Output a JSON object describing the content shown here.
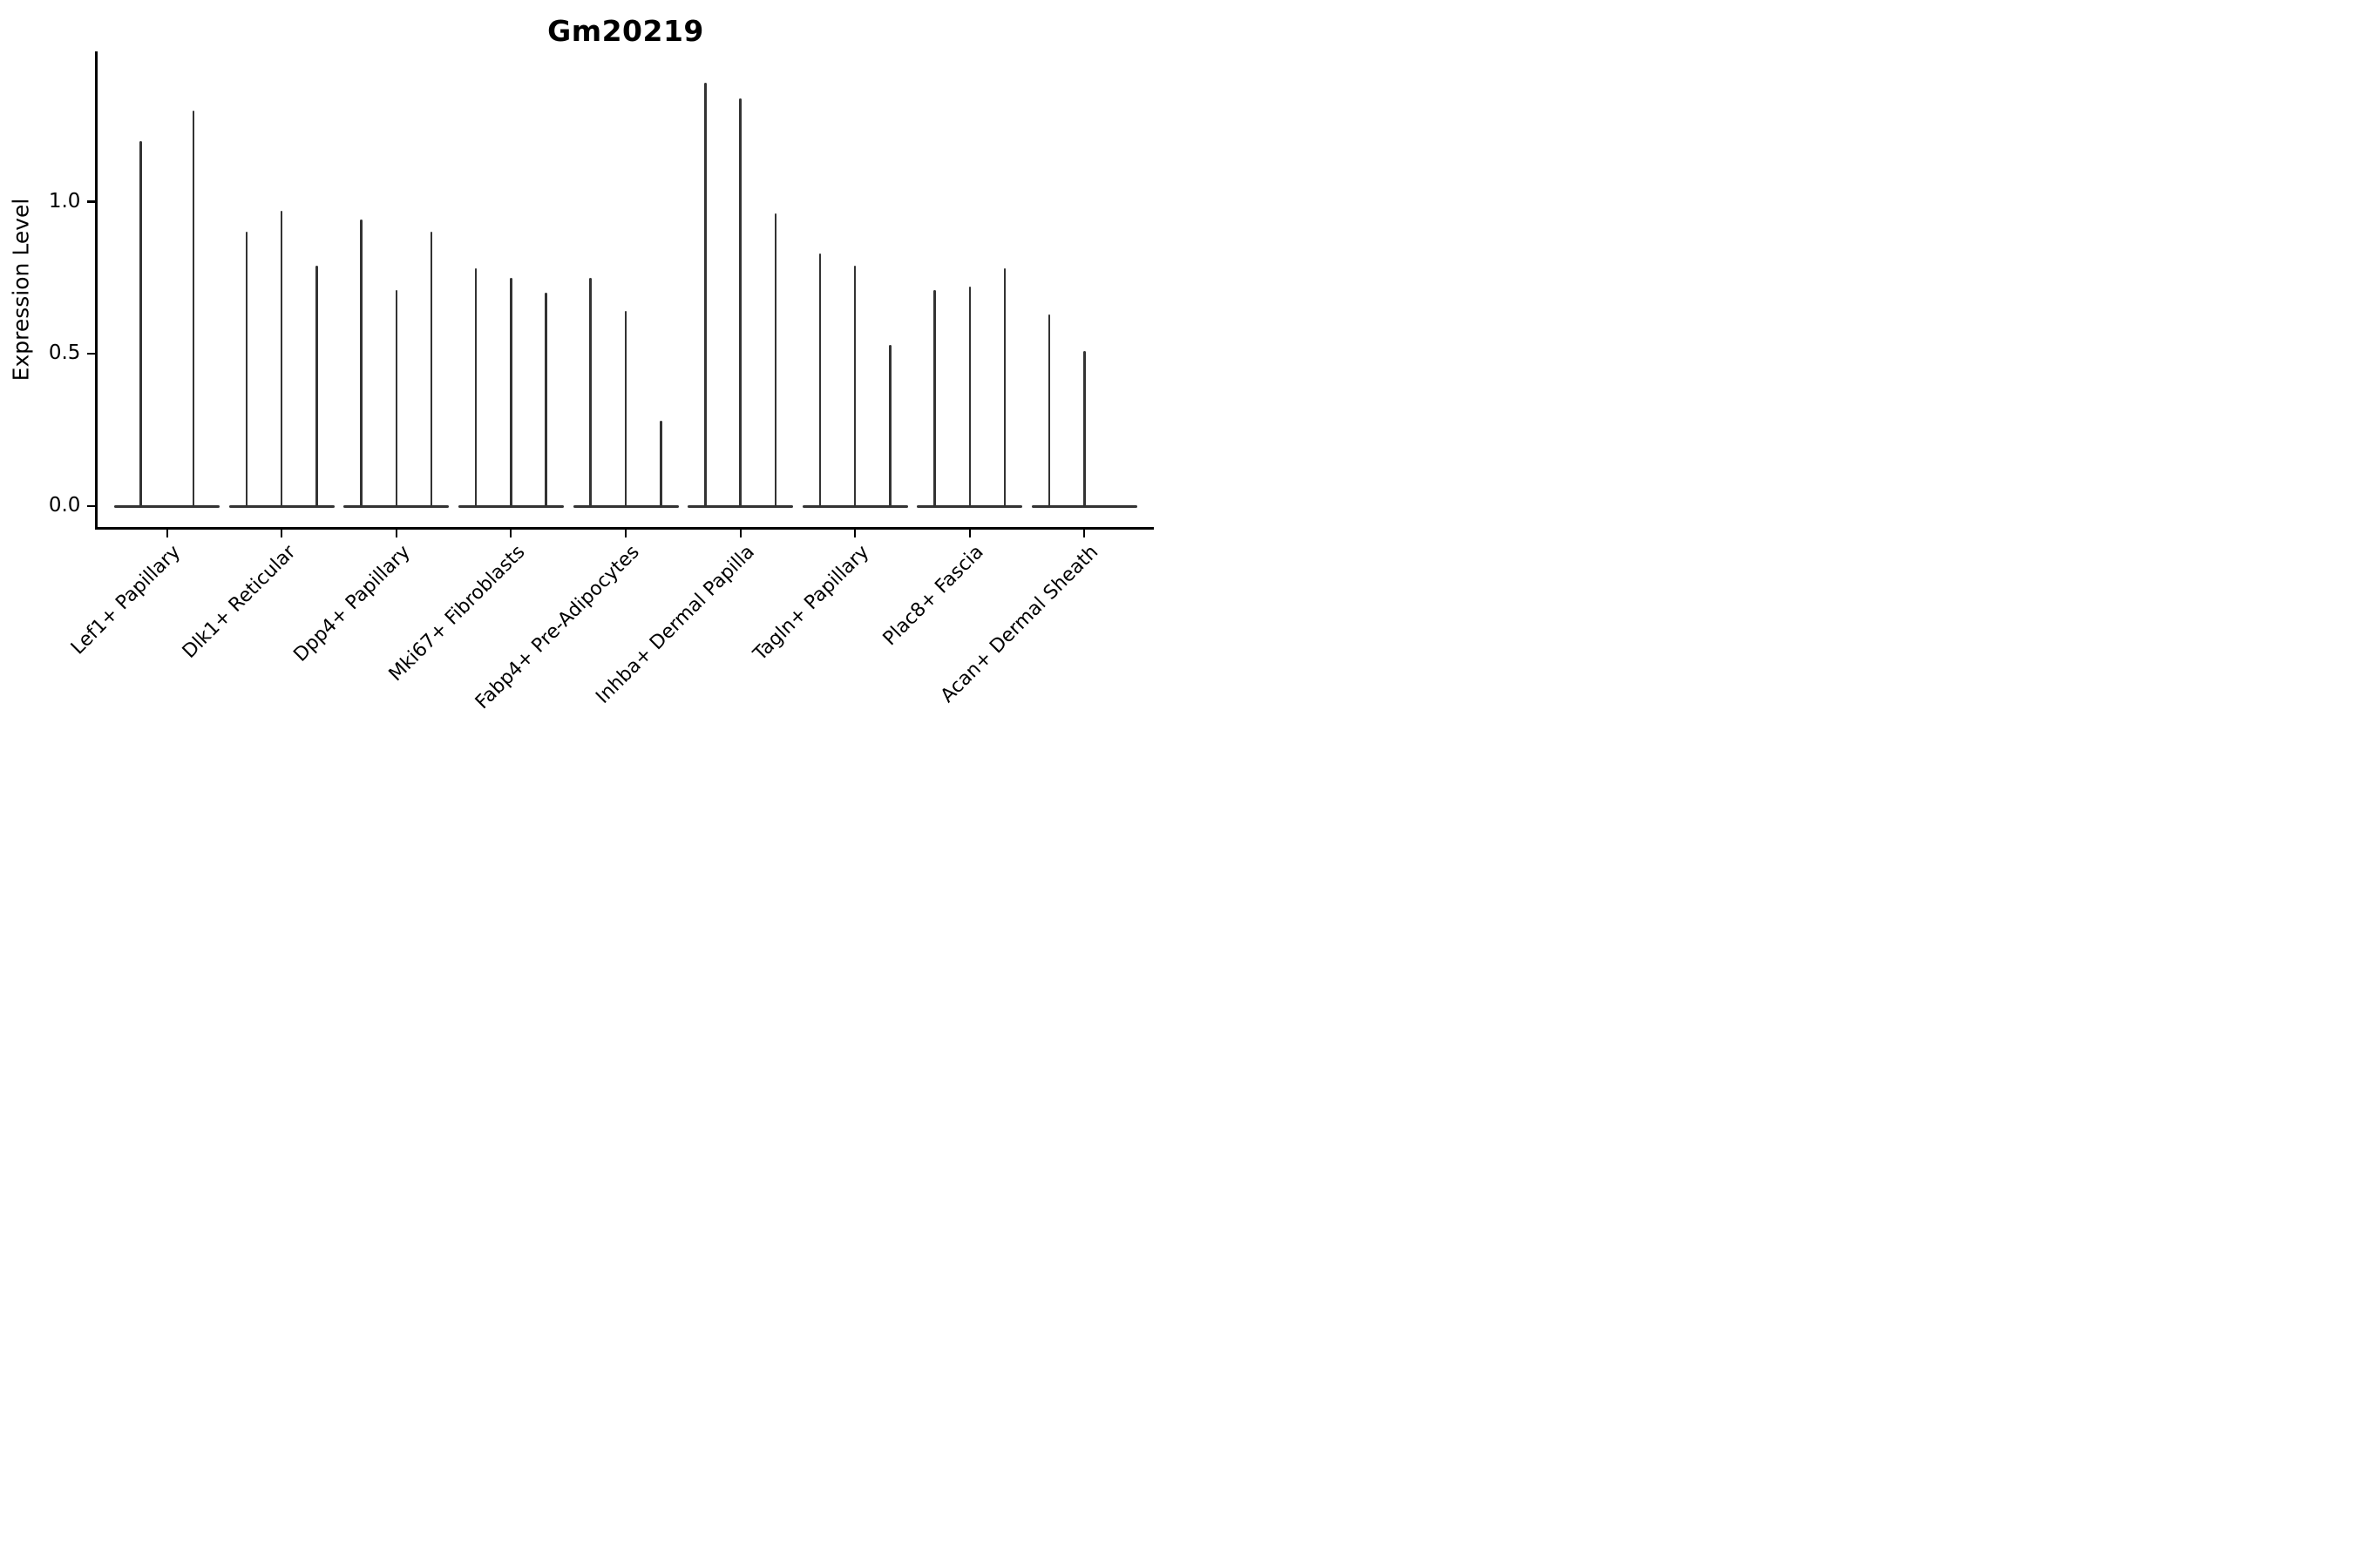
{
  "chart_data": {
    "type": "violin",
    "title": "Gm20219",
    "ylabel": "Expression Level",
    "xlabel": "",
    "ytick_labels": [
      "0.0",
      "0.5",
      "1.0"
    ],
    "ytick_values": [
      0.0,
      0.5,
      1.0
    ],
    "ylim": [
      -0.07,
      1.49
    ],
    "grid": false,
    "legend": "none",
    "style_note": "thin dark-gray violin spikes with flat bases at zero, black left/bottom spines only",
    "colors": {
      "violin": "#333333",
      "axis": "#000000",
      "text": "#000000",
      "background": "#ffffff"
    },
    "categories": [
      {
        "label": "Lef1+ Papillary",
        "slots": 2,
        "spike_maxima": [
          1.2,
          1.3
        ]
      },
      {
        "label": "Dlk1+ Reticular",
        "slots": 3,
        "spike_maxima": [
          0.9,
          0.97,
          0.79
        ]
      },
      {
        "label": "Dpp4+ Papillary",
        "slots": 3,
        "spike_maxima": [
          0.94,
          0.71,
          0.9
        ]
      },
      {
        "label": "Mki67+ Fibroblasts",
        "slots": 3,
        "spike_maxima": [
          0.78,
          0.75,
          0.7
        ]
      },
      {
        "label": "Fabp4+ Pre-Adipocytes",
        "slots": 3,
        "spike_maxima": [
          0.75,
          0.64,
          0.28
        ]
      },
      {
        "label": "Inhba+ Dermal Papilla",
        "slots": 3,
        "spike_maxima": [
          1.39,
          1.34,
          0.96
        ]
      },
      {
        "label": "Tagln+ Papillary",
        "slots": 3,
        "spike_maxima": [
          0.83,
          0.79,
          0.53
        ]
      },
      {
        "label": "Plac8+ Fascia",
        "slots": 3,
        "spike_maxima": [
          0.71,
          0.72,
          0.78
        ]
      },
      {
        "label": "Acan+ Dermal Sheath",
        "slots": 3,
        "spike_maxima": [
          0.63,
          0.51,
          null
        ]
      }
    ]
  }
}
